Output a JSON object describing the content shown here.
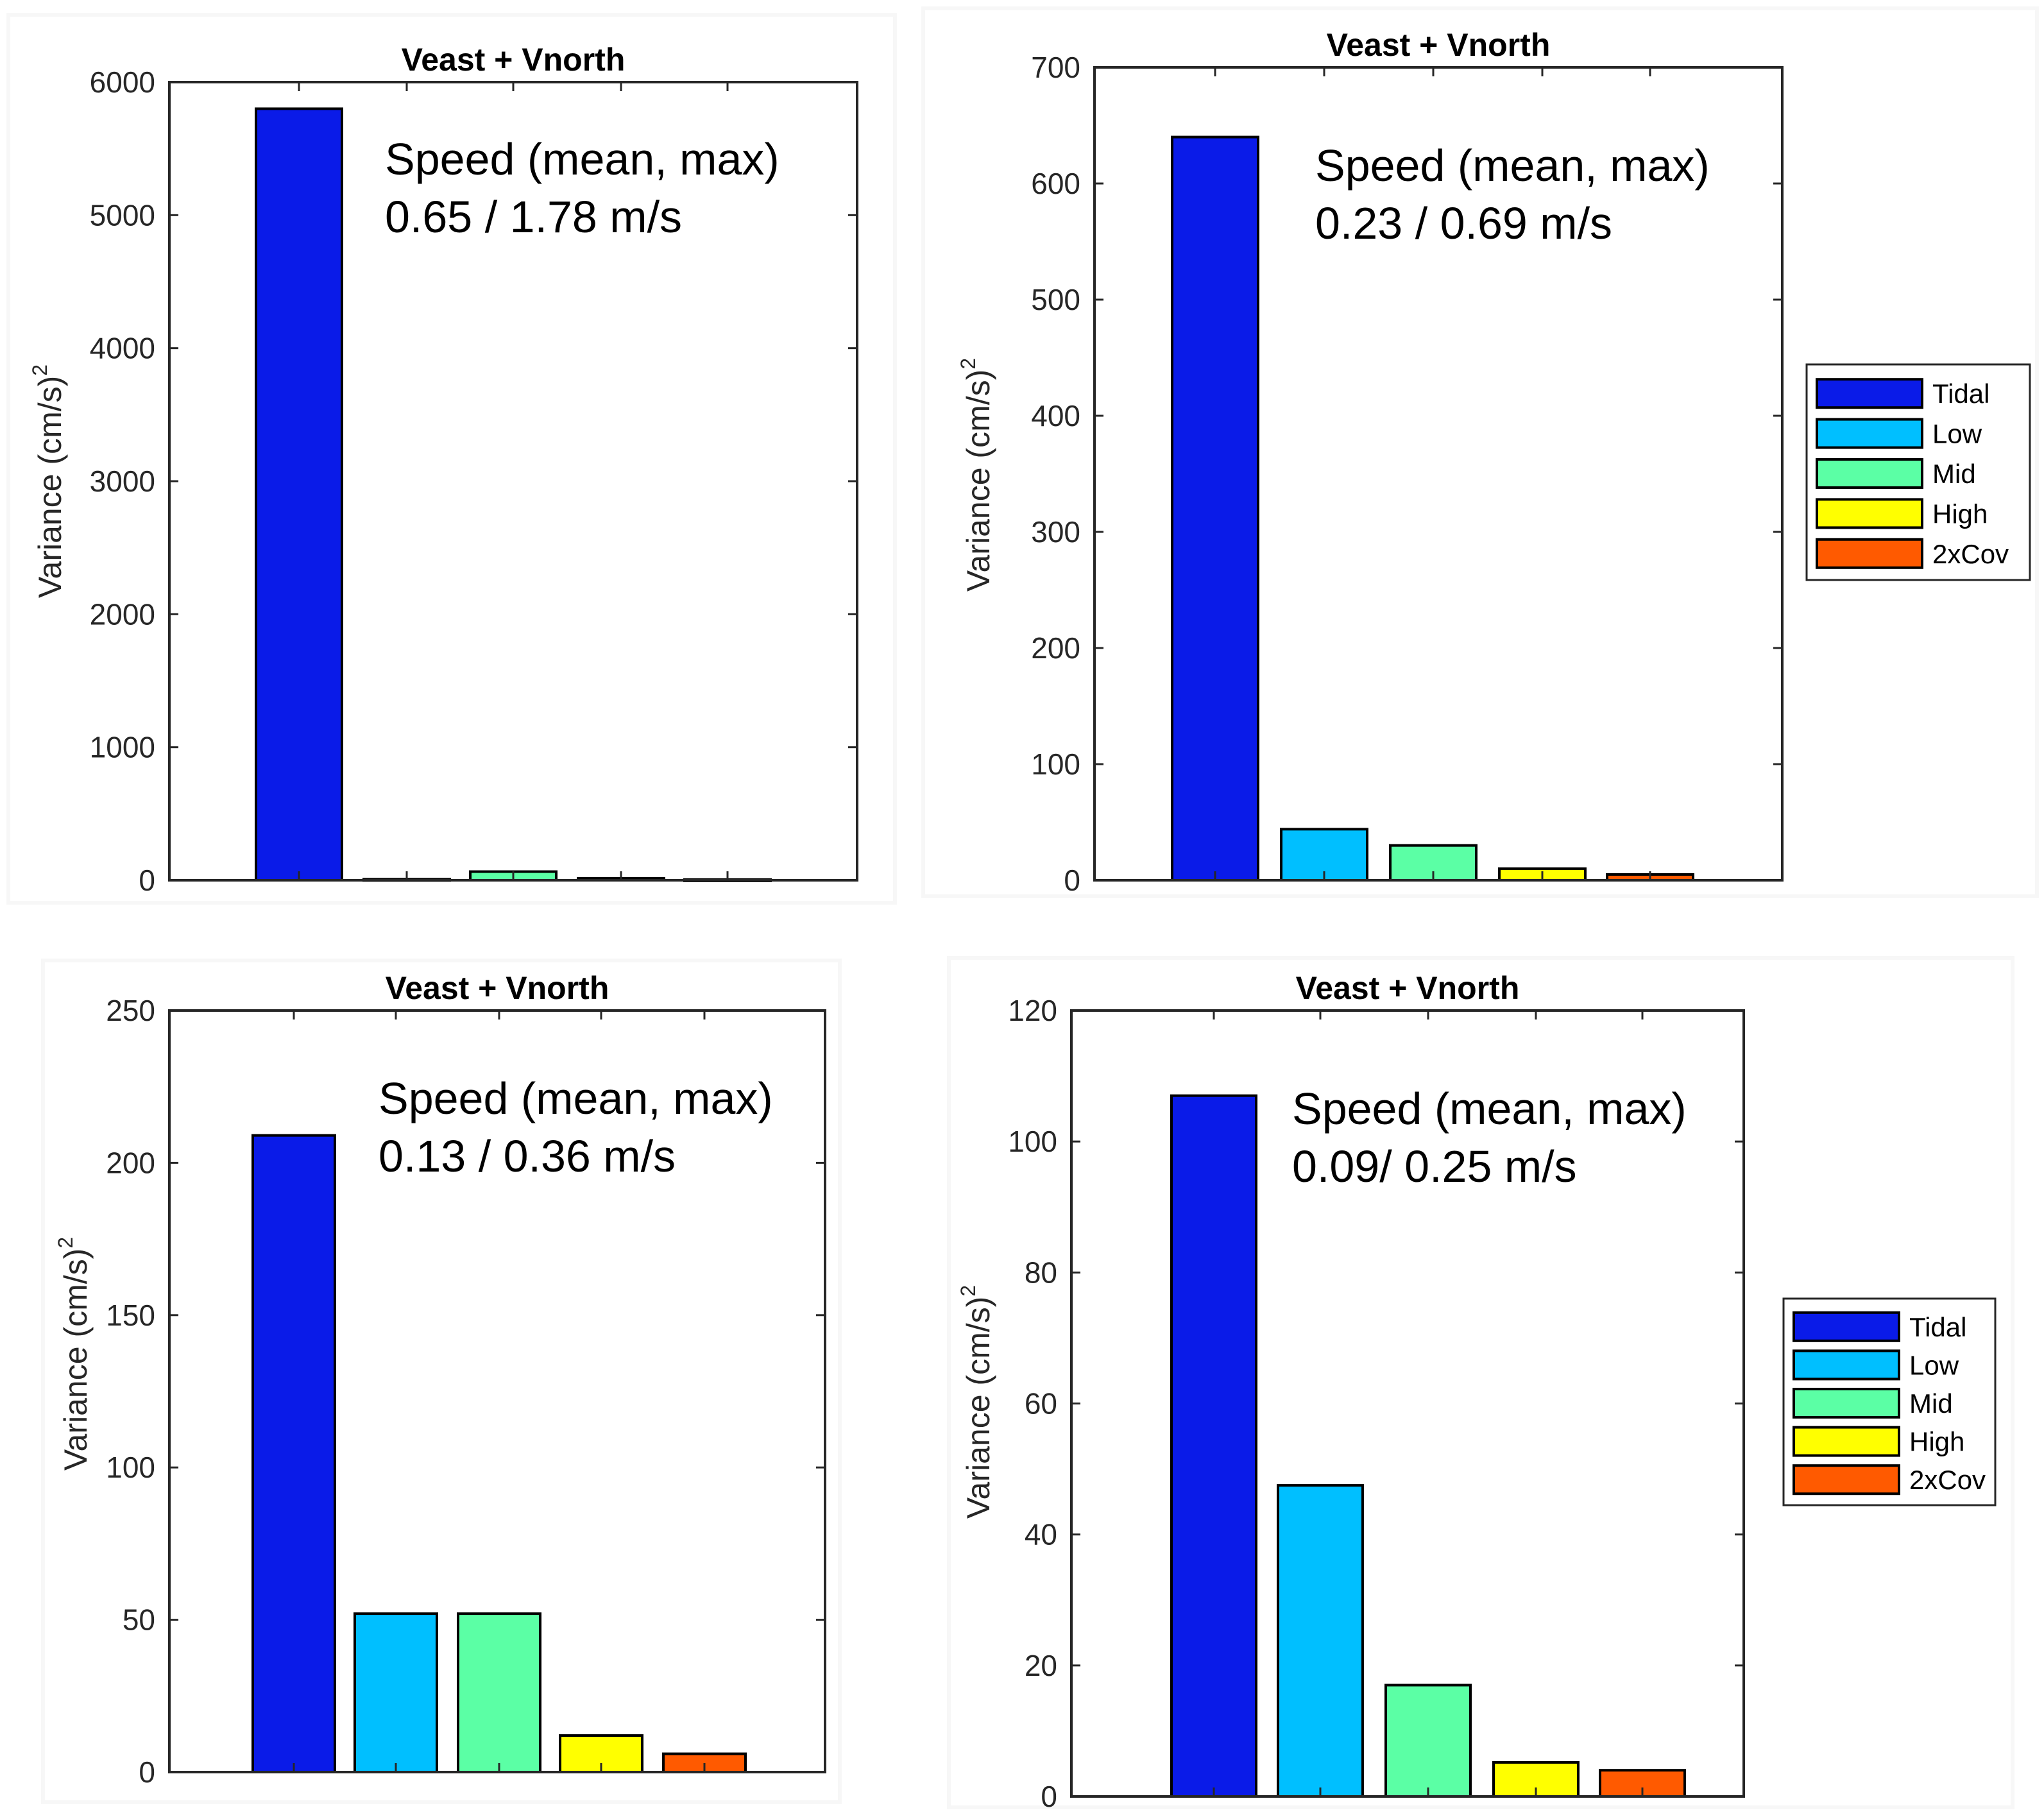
{
  "colors": {
    "Tidal": "#0a1be8",
    "Low": "#00bfff",
    "Mid": "#5bffa5",
    "High": "#ffff00",
    "2xCov": "#ff5a00"
  },
  "chart_data": [
    {
      "type": "bar",
      "title": "Veast + Vnorth",
      "ylabel": "Variance (cm/s)",
      "ylabel_sup": "2",
      "categories": [
        "Tidal",
        "Low",
        "Mid",
        "High",
        "2xCov"
      ],
      "values": [
        5800,
        8,
        65,
        15,
        5
      ],
      "ylim": [
        0,
        6000
      ],
      "yticks": [
        0,
        1000,
        2000,
        3000,
        4000,
        5000,
        6000
      ],
      "annotation": [
        "Speed (mean, max)",
        "0.65 / 1.78 m/s"
      ],
      "legend": false
    },
    {
      "type": "bar",
      "title": "Veast + Vnorth",
      "ylabel": "Variance (cm/s)",
      "ylabel_sup": "2",
      "categories": [
        "Tidal",
        "Low",
        "Mid",
        "High",
        "2xCov"
      ],
      "values": [
        640,
        44,
        30,
        10,
        5
      ],
      "ylim": [
        0,
        700
      ],
      "yticks": [
        0,
        100,
        200,
        300,
        400,
        500,
        600,
        700
      ],
      "annotation": [
        "Speed (mean, max)",
        "0.23 / 0.69 m/s"
      ],
      "legend": true
    },
    {
      "type": "bar",
      "title": "Veast + Vnorth",
      "ylabel": "Variance (cm/s)",
      "ylabel_sup": "2",
      "categories": [
        "Tidal",
        "Low",
        "Mid",
        "High",
        "2xCov"
      ],
      "values": [
        209,
        52,
        52,
        12,
        6
      ],
      "ylim": [
        0,
        250
      ],
      "yticks": [
        0,
        50,
        100,
        150,
        200,
        250
      ],
      "annotation": [
        "Speed (mean, max)",
        "0.13 / 0.36 m/s"
      ],
      "legend": false
    },
    {
      "type": "bar",
      "title": "Veast + Vnorth",
      "ylabel": "Variance (cm/s)",
      "ylabel_sup": "2",
      "categories": [
        "Tidal",
        "Low",
        "Mid",
        "High",
        "2xCov"
      ],
      "values": [
        107,
        47.5,
        17,
        5.2,
        4
      ],
      "ylim": [
        0,
        120
      ],
      "yticks": [
        0,
        20,
        40,
        60,
        80,
        100,
        120
      ],
      "annotation": [
        "Speed (mean, max)",
        "0.09/ 0.25 m/s"
      ],
      "legend": true
    }
  ]
}
